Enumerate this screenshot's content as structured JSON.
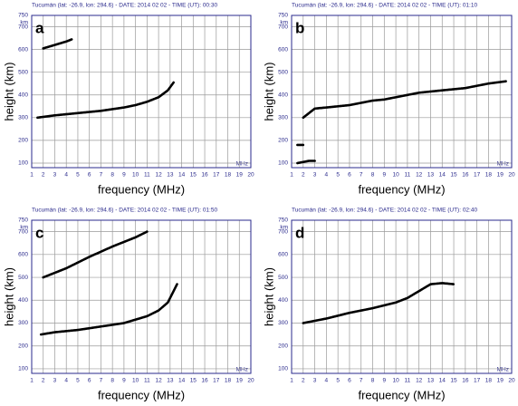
{
  "chart_data": [
    {
      "type": "scatter",
      "title": "Tucumán (lat: -26.9, lon: 294.6) - DATE: 2014 02 02 - TIME (UT): 00:30",
      "label": "a",
      "xlabel": "frequency (MHz)",
      "ylabel": "height (km)",
      "x_unit": "MHz",
      "y_unit": "km",
      "xlim": [
        1,
        20
      ],
      "ylim": [
        80,
        750
      ],
      "xticks": [
        1,
        2,
        3,
        4,
        5,
        6,
        7,
        8,
        9,
        10,
        11,
        12,
        13,
        14,
        15,
        16,
        17,
        18,
        19,
        20
      ],
      "yticks": [
        100,
        200,
        300,
        400,
        500,
        600,
        700,
        750
      ],
      "grid": true,
      "series": [
        {
          "color": "#000000",
          "x": [
            1.5,
            3,
            5,
            7,
            9,
            10,
            11,
            12,
            12.8,
            13.3
          ],
          "y": [
            300,
            310,
            320,
            330,
            345,
            355,
            370,
            390,
            420,
            455
          ]
        },
        {
          "color": "#000000",
          "x": [
            2,
            3,
            4,
            4.5
          ],
          "y": [
            605,
            620,
            635,
            645
          ]
        }
      ]
    },
    {
      "type": "scatter",
      "title": "Tucumán (lat: -26.9, lon: 294.6) - DATE: 2014 02 02 - TIME (UT): 01:10",
      "label": "b",
      "xlabel": "frequency (MHz)",
      "ylabel": "height (km)",
      "x_unit": "MHz",
      "y_unit": "km",
      "xlim": [
        1,
        20
      ],
      "ylim": [
        80,
        750
      ],
      "xticks": [
        1,
        2,
        3,
        4,
        5,
        6,
        7,
        8,
        9,
        10,
        11,
        12,
        13,
        14,
        15,
        16,
        17,
        18,
        19,
        20
      ],
      "yticks": [
        100,
        200,
        300,
        400,
        500,
        600,
        700,
        750
      ],
      "grid": true,
      "series": [
        {
          "color": "#000000",
          "x": [
            2,
            3,
            4,
            5,
            6,
            7,
            8,
            9,
            10,
            11,
            12,
            14,
            16,
            18,
            19.5
          ],
          "y": [
            300,
            340,
            345,
            350,
            355,
            365,
            375,
            380,
            390,
            400,
            410,
            420,
            430,
            450,
            460
          ]
        },
        {
          "color": "#000000",
          "x": [
            1.5,
            2
          ],
          "y": [
            180,
            180
          ]
        },
        {
          "color": "#000000",
          "x": [
            1.5,
            2.5,
            3
          ],
          "y": [
            100,
            110,
            110
          ]
        }
      ]
    },
    {
      "type": "scatter",
      "title": "Tucumán (lat: -26.9, lon: 294.6) - DATE: 2014 02 02 - TIME (UT): 01:50",
      "label": "c",
      "xlabel": "frequency (MHz)",
      "ylabel": "height (km)",
      "x_unit": "MHz",
      "y_unit": "km",
      "xlim": [
        1,
        20
      ],
      "ylim": [
        80,
        750
      ],
      "xticks": [
        1,
        2,
        3,
        4,
        5,
        6,
        7,
        8,
        9,
        10,
        11,
        12,
        13,
        14,
        15,
        16,
        17,
        18,
        19,
        20
      ],
      "yticks": [
        100,
        200,
        300,
        400,
        500,
        600,
        700,
        750
      ],
      "grid": true,
      "series": [
        {
          "color": "#000000",
          "x": [
            1.8,
            3,
            5,
            7,
            9,
            10,
            11,
            12,
            12.8,
            13.3,
            13.6
          ],
          "y": [
            250,
            260,
            270,
            285,
            300,
            315,
            330,
            355,
            390,
            440,
            470
          ]
        },
        {
          "color": "#000000",
          "x": [
            2,
            4,
            6,
            8,
            10,
            11
          ],
          "y": [
            500,
            540,
            590,
            635,
            675,
            700
          ]
        }
      ]
    },
    {
      "type": "scatter",
      "title": "Tucumán (lat: -26.9, lon: 294.6) - DATE: 2014 02 02 - TIME (UT): 02:40",
      "label": "d",
      "xlabel": "frequency (MHz)",
      "ylabel": "height (km)",
      "x_unit": "MHz",
      "y_unit": "km",
      "xlim": [
        1,
        20
      ],
      "ylim": [
        80,
        750
      ],
      "xticks": [
        1,
        2,
        3,
        4,
        5,
        6,
        7,
        8,
        9,
        10,
        11,
        12,
        13,
        14,
        15,
        16,
        17,
        18,
        19,
        20
      ],
      "yticks": [
        100,
        200,
        300,
        400,
        500,
        600,
        700,
        750
      ],
      "grid": true,
      "series": [
        {
          "color": "#000000",
          "x": [
            2,
            3,
            4,
            6,
            8,
            10,
            11,
            12,
            13,
            14,
            15
          ],
          "y": [
            300,
            310,
            320,
            345,
            365,
            390,
            410,
            440,
            470,
            475,
            470
          ]
        }
      ]
    }
  ]
}
